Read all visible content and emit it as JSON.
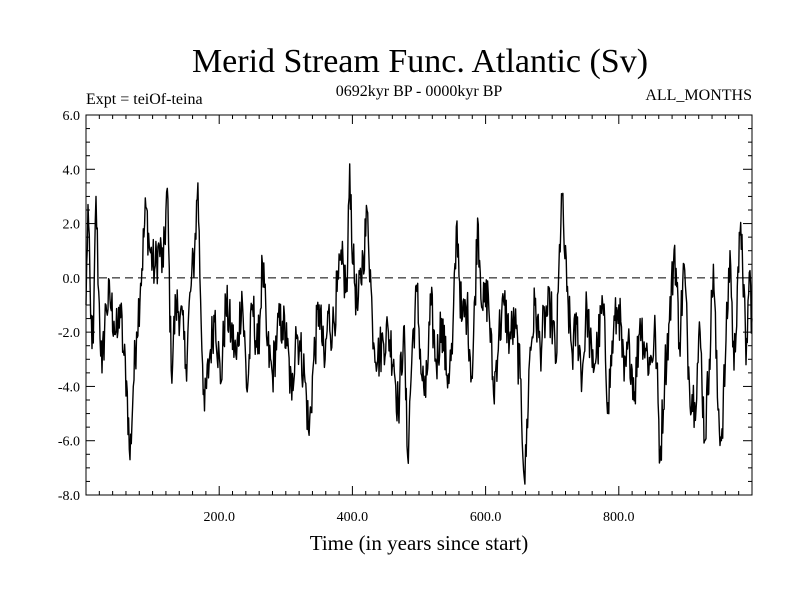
{
  "chart_data": {
    "type": "line",
    "title": "Merid Stream Func. Atlantic (Sv)",
    "subtitle_left": "Expt = teiOf-teina",
    "subtitle_center": "0692kyr BP - 0000kyr BP",
    "subtitle_right": "ALL_MONTHS",
    "xlabel": "Time (in years since start)",
    "ylabel": "",
    "xlim": [
      0,
      1000
    ],
    "ylim": [
      -8,
      6
    ],
    "x_ticks": [
      200,
      400,
      600,
      800
    ],
    "x_tick_labels": [
      "200.0",
      "400.0",
      "600.0",
      "800.0"
    ],
    "y_ticks": [
      6,
      4,
      2,
      0,
      -2,
      -4,
      -6,
      -8
    ],
    "y_tick_labels": [
      "6.0",
      "4.0",
      "2.0",
      "0.0",
      "-2.0",
      "-4.0",
      "-6.0",
      "-8.0"
    ],
    "zero_line": 0,
    "series": [
      {
        "name": "teiOf-teina",
        "color": "#000000",
        "anchors": [
          [
            0,
            -1.0
          ],
          [
            3,
            2.7
          ],
          [
            7,
            -1.5
          ],
          [
            11,
            -2.4
          ],
          [
            15,
            3.0
          ],
          [
            19,
            -0.5
          ],
          [
            24,
            -3.5
          ],
          [
            30,
            -1.0
          ],
          [
            36,
            -0.8
          ],
          [
            42,
            -1.6
          ],
          [
            47,
            -2.2
          ],
          [
            51,
            -1.0
          ],
          [
            56,
            -2.7
          ],
          [
            61,
            -3.8
          ],
          [
            66,
            -6.7
          ],
          [
            71,
            -4.0
          ],
          [
            76,
            -2.0
          ],
          [
            82,
            -0.2
          ],
          [
            90,
            2.6
          ],
          [
            96,
            1.0
          ],
          [
            103,
            0.3
          ],
          [
            110,
            1.1
          ],
          [
            116,
            0.4
          ],
          [
            122,
            3.3
          ],
          [
            128,
            -3.4
          ],
          [
            135,
            -1.0
          ],
          [
            142,
            -1.2
          ],
          [
            150,
            -3.2
          ],
          [
            157,
            -0.5
          ],
          [
            163,
            1.0
          ],
          [
            168,
            3.5
          ],
          [
            172,
            -0.8
          ],
          [
            178,
            -4.9
          ],
          [
            186,
            -2.8
          ],
          [
            194,
            -1.2
          ],
          [
            202,
            -3.9
          ],
          [
            210,
            -1.0
          ],
          [
            218,
            -2.0
          ],
          [
            226,
            -3.0
          ],
          [
            234,
            -0.5
          ],
          [
            242,
            -4.2
          ],
          [
            250,
            -1.0
          ],
          [
            258,
            -2.8
          ],
          [
            265,
            0.5
          ],
          [
            272,
            -2.5
          ],
          [
            280,
            -3.6
          ],
          [
            287,
            -2.0
          ],
          [
            295,
            -1.6
          ],
          [
            302,
            -2.5
          ],
          [
            309,
            -4.5
          ],
          [
            315,
            -1.8
          ],
          [
            322,
            -2.7
          ],
          [
            328,
            -3.5
          ],
          [
            335,
            -5.8
          ],
          [
            342,
            -3.0
          ],
          [
            350,
            -1.0
          ],
          [
            358,
            -3.3
          ],
          [
            364,
            -1.3
          ],
          [
            370,
            -2.0
          ],
          [
            377,
            -0.5
          ],
          [
            384,
            0.5
          ],
          [
            392,
            -0.5
          ],
          [
            396,
            4.2
          ],
          [
            401,
            0.5
          ],
          [
            408,
            -1.2
          ],
          [
            416,
            0.8
          ],
          [
            423,
            2.4
          ],
          [
            430,
            -1.6
          ],
          [
            438,
            -3.0
          ],
          [
            446,
            -2.3
          ],
          [
            454,
            -2.0
          ],
          [
            462,
            -3.0
          ],
          [
            469,
            -4.9
          ],
          [
            477,
            -1.8
          ],
          [
            483,
            -6.6
          ],
          [
            490,
            -2.5
          ],
          [
            497,
            -0.5
          ],
          [
            504,
            -3.6
          ],
          [
            510,
            -4.4
          ],
          [
            518,
            -1.0
          ],
          [
            526,
            -3.2
          ],
          [
            534,
            -1.5
          ],
          [
            542,
            -3.6
          ],
          [
            550,
            -2.8
          ],
          [
            557,
            2.1
          ],
          [
            564,
            -1.6
          ],
          [
            572,
            -1.1
          ],
          [
            580,
            -3.7
          ],
          [
            588,
            2.2
          ],
          [
            596,
            -1.2
          ],
          [
            604,
            -0.6
          ],
          [
            612,
            -4.3
          ],
          [
            620,
            -2.0
          ],
          [
            628,
            -1.0
          ],
          [
            636,
            -2.2
          ],
          [
            644,
            -1.7
          ],
          [
            652,
            -3.7
          ],
          [
            659,
            -7.6
          ],
          [
            666,
            -3.0
          ],
          [
            674,
            -1.0
          ],
          [
            682,
            -2.6
          ],
          [
            690,
            -1.4
          ],
          [
            698,
            -1.2
          ],
          [
            706,
            -3.1
          ],
          [
            714,
            3.1
          ],
          [
            722,
            -0.5
          ],
          [
            730,
            -2.8
          ],
          [
            737,
            -1.7
          ],
          [
            745,
            -3.6
          ],
          [
            752,
            -1.0
          ],
          [
            760,
            -3.3
          ],
          [
            768,
            -2.6
          ],
          [
            776,
            -1.0
          ],
          [
            784,
            -4.6
          ],
          [
            792,
            -2.0
          ],
          [
            800,
            -1.0
          ],
          [
            808,
            -3.8
          ],
          [
            816,
            -2.5
          ],
          [
            824,
            -4.2
          ],
          [
            832,
            -1.5
          ],
          [
            840,
            -2.6
          ],
          [
            847,
            -3.2
          ],
          [
            855,
            -2.0
          ],
          [
            862,
            -6.7
          ],
          [
            869,
            -3.5
          ],
          [
            876,
            -1.6
          ],
          [
            884,
            1.2
          ],
          [
            891,
            -2.4
          ],
          [
            898,
            0.5
          ],
          [
            906,
            -3.9
          ],
          [
            914,
            -4.6
          ],
          [
            922,
            -2.0
          ],
          [
            929,
            -6.0
          ],
          [
            936,
            -3.0
          ],
          [
            942,
            0.5
          ],
          [
            948,
            -4.4
          ],
          [
            954,
            -6.0
          ],
          [
            960,
            -3.0
          ],
          [
            967,
            1.0
          ],
          [
            973,
            -3.4
          ],
          [
            979,
            0.4
          ],
          [
            985,
            1.6
          ],
          [
            991,
            -3.2
          ],
          [
            996,
            0.2
          ],
          [
            1000,
            -1.5
          ]
        ]
      }
    ]
  }
}
